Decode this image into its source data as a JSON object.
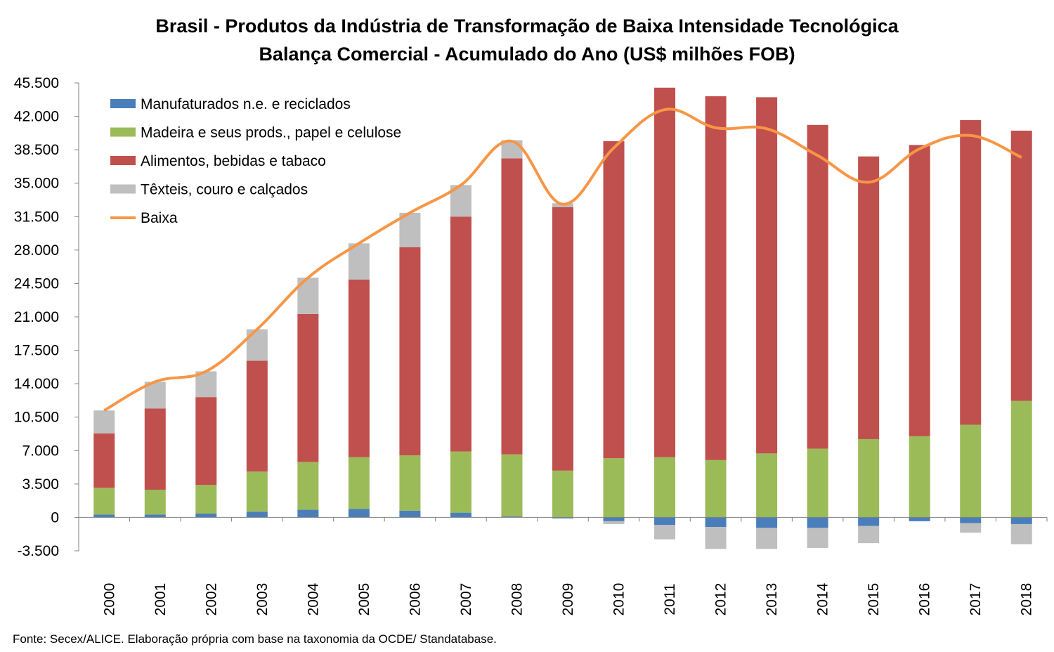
{
  "title_line1": "Brasil - Produtos da Indústria de Transformação de Baixa Intensidade Tecnológica",
  "title_line2": "Balança Comercial - Acumulado do Ano (US$ milhões FOB)",
  "source": "Fonte: Secex/ALICE. Elaboração própria com base na taxonomia da OCDE/ Standatabase.",
  "colors": {
    "manufaturados": "#4a7ebb",
    "madeira": "#9bbb59",
    "alimentos": "#c0504d",
    "texteis": "#bfbfbf",
    "baixa": "#f79646",
    "axis": "#808080"
  },
  "chart_data": {
    "type": "bar",
    "stacked": true,
    "title": "Brasil - Produtos da Indústria de Transformação de Baixa Intensidade Tecnológica",
    "subtitle": "Balança Comercial - Acumulado do Ano (US$ milhões FOB)",
    "xlabel": "",
    "ylabel": "",
    "ylim": [
      -3500,
      45500
    ],
    "y_ticks": [
      "-3.500",
      "0",
      "3.500",
      "7.000",
      "10.500",
      "14.000",
      "17.500",
      "21.000",
      "24.500",
      "28.000",
      "31.500",
      "35.000",
      "38.500",
      "42.000",
      "45.500"
    ],
    "y_tick_values": [
      -3500,
      0,
      3500,
      7000,
      10500,
      14000,
      17500,
      21000,
      24500,
      28000,
      31500,
      35000,
      38500,
      42000,
      45500
    ],
    "grid": false,
    "legend_position": "top-left",
    "categories": [
      "2000",
      "2001",
      "2002",
      "2003",
      "2004",
      "2005",
      "2006",
      "2007",
      "2008",
      "2009",
      "2010",
      "2011",
      "2012",
      "2013",
      "2014",
      "2015",
      "2016",
      "2017",
      "2018"
    ],
    "series": [
      {
        "name": "Manufaturados n.e. e reciclados",
        "kind": "bar",
        "values": [
          300,
          300,
          400,
          600,
          800,
          900,
          700,
          500,
          100,
          -100,
          -400,
          -800,
          -1000,
          -1100,
          -1100,
          -900,
          -400,
          -600,
          -700
        ]
      },
      {
        "name": "Madeira e seus prods., papel e celulose",
        "kind": "bar",
        "values": [
          2800,
          2600,
          3000,
          4200,
          5000,
          5400,
          5800,
          6400,
          6500,
          4900,
          6200,
          6300,
          6000,
          6700,
          7200,
          8200,
          8500,
          9700,
          12200
        ]
      },
      {
        "name": "Alimentos, bebidas e tabaco",
        "kind": "bar",
        "values": [
          5700,
          8500,
          9200,
          11600,
          15500,
          18600,
          21800,
          24600,
          31000,
          27600,
          33200,
          38700,
          38100,
          37300,
          33900,
          29600,
          30500,
          31900,
          28300
        ]
      },
      {
        "name": "Têxteis, couro e calçados",
        "kind": "bar",
        "values": [
          2400,
          2800,
          2700,
          3300,
          3800,
          3800,
          3600,
          3300,
          1900,
          400,
          -300,
          -1500,
          -2300,
          -2200,
          -2100,
          -1800,
          0,
          -1000,
          -2100
        ]
      },
      {
        "name": "Baixa",
        "kind": "line",
        "values": [
          11200,
          14200,
          15300,
          19700,
          25100,
          28700,
          31900,
          34800,
          39400,
          32800,
          38700,
          42700,
          40800,
          40700,
          37900,
          35100,
          38600,
          40000,
          37700
        ]
      }
    ]
  }
}
